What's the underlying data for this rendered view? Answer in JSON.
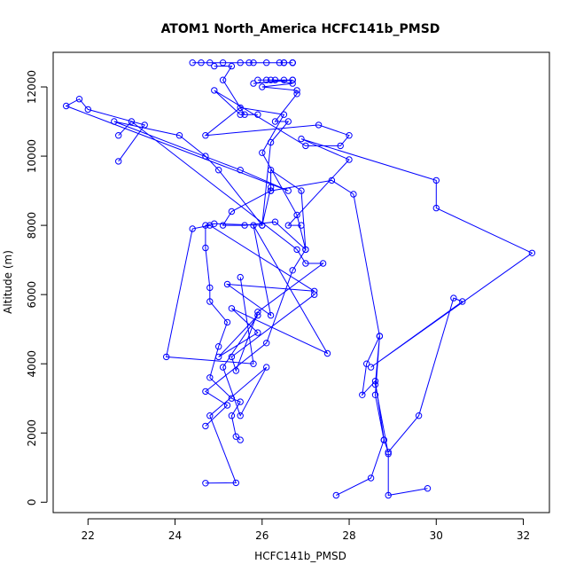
{
  "chart_data": {
    "type": "line",
    "title": "ATOM1 North_America HCFC141b_PMSD",
    "xlabel": "HCFC141b_PMSD",
    "ylabel": "Altitude (m)",
    "xlim": [
      21.2,
      32.6
    ],
    "ylim": [
      -300,
      13000
    ],
    "x_ticks": [
      22,
      24,
      26,
      28,
      30,
      32
    ],
    "y_ticks": [
      0,
      2000,
      4000,
      6000,
      8000,
      10000,
      12000
    ],
    "grid": false,
    "legend": "none",
    "series_color": "#0000ff",
    "series": [
      {
        "points": [
          [
            24.7,
            550
          ],
          [
            25.4,
            560
          ],
          [
            24.8,
            2500
          ],
          [
            26.1,
            3900
          ],
          [
            25.5,
            2500
          ],
          [
            25.1,
            3900
          ],
          [
            25.9,
            5400
          ],
          [
            25.0,
            4200
          ],
          [
            25.9,
            4900
          ],
          [
            25.3,
            5600
          ],
          [
            27.5,
            4300
          ],
          [
            25.8,
            8000
          ],
          [
            26.2,
            5400
          ],
          [
            25.2,
            6300
          ],
          [
            27.2,
            6100
          ],
          [
            24.8,
            8000
          ],
          [
            24.4,
            7900
          ],
          [
            23.8,
            4200
          ],
          [
            25.8,
            4000
          ],
          [
            25.5,
            6500
          ]
        ]
      },
      {
        "points": [
          [
            22.7,
            9850
          ],
          [
            23.3,
            10900
          ],
          [
            22.0,
            11350
          ],
          [
            21.8,
            11650
          ],
          [
            21.5,
            11450
          ],
          [
            26.6,
            9000
          ],
          [
            25.5,
            9600
          ],
          [
            22.6,
            11000
          ],
          [
            24.1,
            10600
          ],
          [
            24.7,
            10000
          ],
          [
            25.0,
            9600
          ],
          [
            26.0,
            8000
          ],
          [
            24.9,
            8050
          ],
          [
            24.7,
            8000
          ],
          [
            24.7,
            7350
          ],
          [
            24.8,
            6200
          ],
          [
            24.8,
            5800
          ],
          [
            25.2,
            5200
          ],
          [
            25.0,
            4500
          ],
          [
            24.8,
            3600
          ],
          [
            25.3,
            3000
          ],
          [
            25.5,
            2900
          ],
          [
            25.3,
            2500
          ],
          [
            25.4,
            1900
          ],
          [
            25.5,
            1800
          ]
        ]
      },
      {
        "points": [
          [
            22.7,
            10600
          ],
          [
            23.0,
            11000
          ],
          [
            26.8,
            7300
          ],
          [
            27.0,
            6900
          ],
          [
            27.4,
            6900
          ],
          [
            25.9,
            5500
          ],
          [
            25.4,
            3800
          ],
          [
            25.3,
            4200
          ],
          [
            27.2,
            6000
          ]
        ]
      },
      {
        "points": [
          [
            24.9,
            12600
          ],
          [
            25.3,
            12600
          ],
          [
            25.1,
            12200
          ],
          [
            25.6,
            11200
          ],
          [
            25.9,
            11200
          ],
          [
            25.5,
            11200
          ],
          [
            24.9,
            11900
          ],
          [
            27.0,
            10300
          ],
          [
            27.8,
            10300
          ],
          [
            28.0,
            10600
          ],
          [
            27.3,
            10900
          ],
          [
            24.7,
            10600
          ],
          [
            25.5,
            11400
          ],
          [
            26.5,
            11200
          ],
          [
            26.0,
            10100
          ],
          [
            26.8,
            8300
          ],
          [
            27.0,
            7300
          ],
          [
            26.3,
            8100
          ],
          [
            25.6,
            8000
          ],
          [
            25.1,
            8000
          ],
          [
            25.3,
            8400
          ],
          [
            26.2,
            9000
          ],
          [
            27.6,
            9300
          ],
          [
            28.1,
            8900
          ],
          [
            28.7,
            4800
          ],
          [
            28.4,
            4000
          ],
          [
            28.3,
            3100
          ],
          [
            28.6,
            3500
          ],
          [
            28.8,
            1800
          ],
          [
            28.9,
            1450
          ],
          [
            29.6,
            2500
          ],
          [
            30.4,
            5900
          ],
          [
            30.6,
            5800
          ],
          [
            28.5,
            3900
          ],
          [
            32.2,
            7200
          ],
          [
            30.0,
            8500
          ],
          [
            30.0,
            9300
          ],
          [
            26.9,
            10500
          ],
          [
            28.0,
            9900
          ],
          [
            26.6,
            8000
          ],
          [
            26.9,
            8000
          ]
        ]
      },
      {
        "points": [
          [
            24.4,
            12700
          ],
          [
            25.7,
            12700
          ],
          [
            26.7,
            12700
          ],
          [
            24.8,
            12700
          ],
          [
            26.5,
            12700
          ],
          [
            25.8,
            12700
          ],
          [
            25.1,
            12700
          ],
          [
            26.1,
            12700
          ],
          [
            26.7,
            12700
          ],
          [
            24.6,
            12700
          ],
          [
            26.5,
            12700
          ],
          [
            25.5,
            12700
          ],
          [
            26.4,
            12700
          ],
          [
            26.7,
            12700
          ]
        ]
      },
      {
        "points": [
          [
            25.9,
            12200
          ],
          [
            26.7,
            12200
          ],
          [
            26.2,
            12200
          ],
          [
            26.5,
            12200
          ],
          [
            25.8,
            12100
          ],
          [
            26.7,
            12200
          ],
          [
            26.1,
            12200
          ],
          [
            26.3,
            12200
          ],
          [
            26.7,
            12100
          ],
          [
            26.0,
            12000
          ],
          [
            26.8,
            11900
          ],
          [
            26.8,
            11800
          ],
          [
            26.3,
            11000
          ],
          [
            26.6,
            11000
          ],
          [
            26.2,
            10400
          ],
          [
            26.0,
            8000
          ],
          [
            26.2,
            9100
          ],
          [
            26.2,
            9000
          ],
          [
            26.2,
            9600
          ],
          [
            26.9,
            9000
          ],
          [
            27.0,
            7300
          ],
          [
            26.7,
            6700
          ],
          [
            26.1,
            4600
          ],
          [
            24.7,
            3200
          ],
          [
            25.2,
            2800
          ],
          [
            24.7,
            2200
          ]
        ]
      },
      {
        "points": [
          [
            27.7,
            200
          ],
          [
            28.5,
            700
          ],
          [
            28.8,
            1800
          ],
          [
            28.6,
            3100
          ],
          [
            28.7,
            4800
          ],
          [
            28.6,
            3400
          ],
          [
            28.9,
            1400
          ],
          [
            28.9,
            200
          ],
          [
            29.8,
            400
          ]
        ]
      }
    ]
  }
}
